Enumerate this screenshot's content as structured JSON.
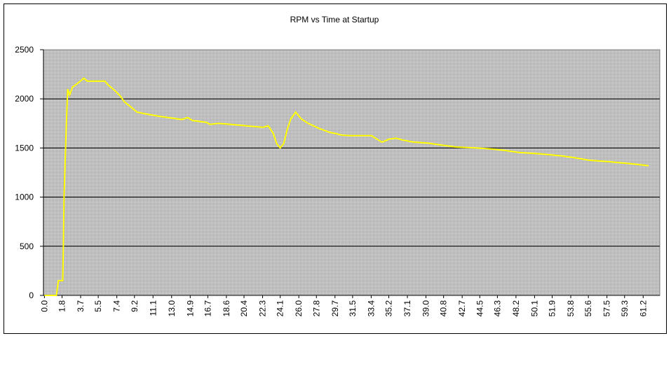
{
  "chart_data": {
    "type": "line",
    "title": "RPM vs Time at Startup",
    "x": [
      0,
      1.22,
      1.43,
      1.87,
      1.94,
      2.01,
      2.22,
      2.37,
      2.58,
      2.87,
      3.3,
      4.02,
      4.38,
      6.17,
      6.53,
      7.25,
      7.75,
      8.18,
      9.04,
      9.47,
      10.47,
      11.91,
      14.06,
      14.63,
      15.14,
      16.57,
      16.93,
      17.79,
      19.08,
      20.16,
      21.23,
      22.31,
      22.88,
      23.39,
      23.74,
      24.1,
      24.46,
      24.82,
      25.18,
      25.68,
      26.26,
      26.97,
      28.05,
      29.12,
      29.84,
      30.42,
      31.28,
      33.43,
      34.15,
      34.51,
      35.22,
      35.94,
      36.66,
      37.73,
      39.17,
      40.6,
      42.04,
      44.19,
      45.62,
      47.06,
      48.49,
      50.65,
      52.8,
      54.23,
      55.67,
      57.82,
      59.97,
      61.76
    ],
    "values": [
      0,
      0,
      150,
      150,
      550,
      1010,
      1690,
      2100,
      2040,
      2120,
      2150,
      2210,
      2180,
      2180,
      2140,
      2080,
      2030,
      1970,
      1900,
      1865,
      1845,
      1820,
      1790,
      1810,
      1780,
      1760,
      1740,
      1750,
      1740,
      1730,
      1720,
      1710,
      1725,
      1650,
      1545,
      1500,
      1545,
      1690,
      1795,
      1865,
      1795,
      1750,
      1700,
      1660,
      1645,
      1630,
      1625,
      1625,
      1580,
      1560,
      1590,
      1600,
      1580,
      1560,
      1550,
      1530,
      1510,
      1500,
      1490,
      1475,
      1455,
      1440,
      1420,
      1400,
      1375,
      1360,
      1340,
      1320
    ],
    "color": "#ffff00",
    "xlim": [
      -0.1,
      62.9
    ],
    "xticks": [
      {
        "value": 0,
        "label": "0.0"
      },
      1.8,
      3.7,
      5.5,
      7.4,
      9.2,
      11.1,
      {
        "value": 13,
        "label": "13.0"
      },
      14.9,
      16.7,
      18.6,
      20.4,
      22.3,
      24.1,
      {
        "value": 26,
        "label": "26.0"
      },
      27.8,
      29.7,
      31.5,
      33.4,
      35.2,
      37.1,
      {
        "value": 39,
        "label": "39.0"
      },
      40.8,
      42.7,
      44.5,
      46.3,
      48.2,
      50.1,
      51.9,
      53.8,
      55.6,
      57.5,
      59.3,
      61.2
    ],
    "ylim": [
      0,
      2500
    ],
    "yticks": [
      0,
      500,
      1000,
      1500,
      2000,
      2500
    ],
    "grid": true
  }
}
